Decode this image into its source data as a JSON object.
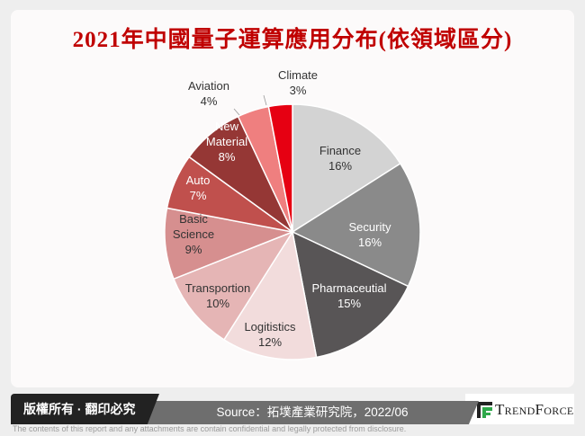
{
  "title": "2021年中國量子運算應用分布(依領域區分)",
  "chart_data": {
    "type": "pie",
    "title": "2021年中國量子運算應用分布(依領域區分)",
    "unit": "%",
    "start": "12 o'clock, clockwise",
    "slices": [
      {
        "label": "Finance",
        "value": 16,
        "text": "16%",
        "color": "#d3d3d3",
        "text_color": "#333333"
      },
      {
        "label": "Security",
        "value": 16,
        "text": "16%",
        "color": "#8a8a8a",
        "text_color": "#ffffff"
      },
      {
        "label": "Pharmaceutial",
        "value": 15,
        "text": "15%",
        "color": "#585556",
        "text_color": "#ffffff"
      },
      {
        "label": "Logitistics",
        "value": 12,
        "text": "12%",
        "color": "#f2dcdc",
        "text_color": "#333333"
      },
      {
        "label": "Transportion",
        "value": 10,
        "text": "10%",
        "color": "#e5b5b5",
        "text_color": "#333333"
      },
      {
        "label": "Basic Science",
        "value": 9,
        "text": "9%",
        "color": "#d68f8f",
        "text_color": "#333333"
      },
      {
        "label": "Auto",
        "value": 7,
        "text": "7%",
        "color": "#c0504d",
        "text_color": "#ffffff"
      },
      {
        "label": "New Material",
        "value": 8,
        "text": "8%",
        "color": "#953735",
        "text_color": "#ffffff"
      },
      {
        "label": "Aviation",
        "value": 4,
        "text": "4%",
        "color": "#ef7f7f",
        "text_color": "#333333"
      },
      {
        "label": "Climate",
        "value": 3,
        "text": "3%",
        "color": "#e60012",
        "text_color": "#333333"
      }
    ]
  },
  "footer": {
    "copyright": "版權所有 · 翻印必究",
    "source": "Source：拓墣產業研究院，2022/06",
    "brand": "TrendForce",
    "disclaimer": "The contents of this report and any attachments are contain confidential and legally protected from disclosure."
  }
}
